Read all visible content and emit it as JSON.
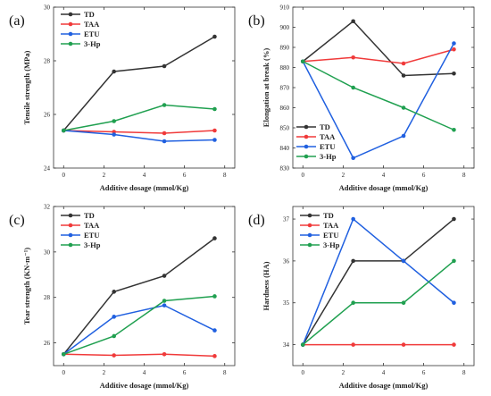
{
  "chart_data": [
    {
      "type": "line",
      "panel_label": "(a)",
      "xlabel": "Additive dosage (mmol/Kg)",
      "ylabel": "Tensile strength (MPa)",
      "x": [
        0,
        2.5,
        5,
        7.5
      ],
      "xlim": [
        -0.5,
        8.5
      ],
      "xticks": [
        0,
        2,
        4,
        6,
        8
      ],
      "ylim": [
        24,
        30
      ],
      "yticks": [
        24,
        26,
        28,
        30
      ],
      "legend_position": "top-left",
      "series": [
        {
          "name": "TD",
          "color": "#333333",
          "values": [
            25.4,
            27.6,
            27.8,
            28.9
          ]
        },
        {
          "name": "TAA",
          "color": "#f03a3a",
          "values": [
            25.4,
            25.35,
            25.3,
            25.4
          ]
        },
        {
          "name": "ETU",
          "color": "#2060e0",
          "values": [
            25.4,
            25.25,
            25.0,
            25.05
          ]
        },
        {
          "name": "3-Hp",
          "color": "#20a050",
          "values": [
            25.4,
            25.75,
            26.35,
            26.2
          ]
        }
      ]
    },
    {
      "type": "line",
      "panel_label": "(b)",
      "xlabel": "Additive dosage (mmol/Kg)",
      "ylabel": "Elongation at break (%)",
      "x": [
        0,
        2.5,
        5,
        7.5
      ],
      "xlim": [
        -0.5,
        8.5
      ],
      "xticks": [
        0,
        2,
        4,
        6,
        8
      ],
      "ylim": [
        830,
        910
      ],
      "yticks": [
        830,
        840,
        850,
        860,
        870,
        880,
        890,
        900,
        910
      ],
      "legend_position": "bottom-left",
      "series": [
        {
          "name": "TD",
          "color": "#333333",
          "values": [
            883,
            903,
            876,
            877
          ]
        },
        {
          "name": "TAA",
          "color": "#f03a3a",
          "values": [
            883,
            885,
            882,
            889
          ]
        },
        {
          "name": "ETU",
          "color": "#2060e0",
          "values": [
            883,
            835,
            846,
            892
          ]
        },
        {
          "name": "3-Hp",
          "color": "#20a050",
          "values": [
            883,
            870,
            860,
            849
          ]
        }
      ]
    },
    {
      "type": "line",
      "panel_label": "(c)",
      "xlabel": "Additive dosage (mmol/Kg)",
      "ylabel": "Tear strength (KN·m⁻¹)",
      "x": [
        0,
        2.5,
        5,
        7.5
      ],
      "xlim": [
        -0.5,
        8.5
      ],
      "xticks": [
        0,
        2,
        4,
        6,
        8
      ],
      "ylim": [
        25,
        32
      ],
      "yticks": [
        26,
        28,
        30,
        32
      ],
      "legend_position": "top-left",
      "series": [
        {
          "name": "TD",
          "color": "#333333",
          "values": [
            25.5,
            28.25,
            28.95,
            30.6
          ]
        },
        {
          "name": "TAA",
          "color": "#f03a3a",
          "values": [
            25.5,
            25.45,
            25.5,
            25.42
          ]
        },
        {
          "name": "ETU",
          "color": "#2060e0",
          "values": [
            25.5,
            27.15,
            27.65,
            26.55
          ]
        },
        {
          "name": "3-Hp",
          "color": "#20a050",
          "values": [
            25.5,
            26.3,
            27.85,
            28.05
          ]
        }
      ]
    },
    {
      "type": "line",
      "panel_label": "(d)",
      "xlabel": "Additive dosage (mmol/Kg)",
      "ylabel": "Hardness (HA)",
      "x": [
        0,
        2.5,
        5,
        7.5
      ],
      "xlim": [
        -0.5,
        8.5
      ],
      "xticks": [
        0,
        2,
        4,
        6,
        8
      ],
      "ylim": [
        33.5,
        37.3
      ],
      "yticks": [
        34,
        35,
        36,
        37
      ],
      "legend_position": "top-left",
      "series": [
        {
          "name": "TD",
          "color": "#333333",
          "values": [
            34,
            36,
            36,
            37
          ]
        },
        {
          "name": "TAA",
          "color": "#f03a3a",
          "values": [
            34,
            34,
            34,
            34
          ]
        },
        {
          "name": "ETU",
          "color": "#2060e0",
          "values": [
            34,
            37,
            36,
            35
          ]
        },
        {
          "name": "3-Hp",
          "color": "#20a050",
          "values": [
            34,
            35,
            35,
            36
          ]
        }
      ]
    }
  ]
}
